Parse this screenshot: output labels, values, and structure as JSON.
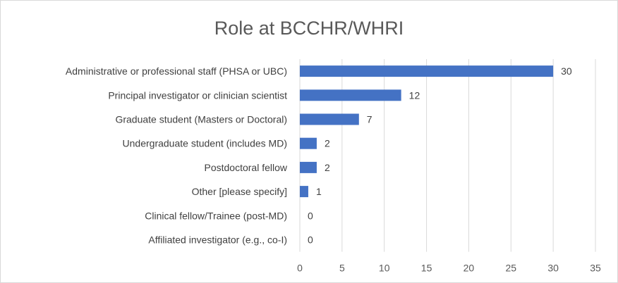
{
  "chart_data": {
    "type": "bar",
    "orientation": "horizontal",
    "title": "Role at BCCHR/WHRI",
    "categories": [
      "Administrative or professional staff (PHSA or UBC)",
      "Principal investigator or clinician scientist",
      "Graduate student (Masters or Doctoral)",
      "Undergraduate student (includes MD)",
      "Postdoctoral fellow",
      "Other [please specify]",
      "Clinical fellow/Trainee (post-MD)",
      "Affiliated investigator (e.g., co-I)"
    ],
    "values": [
      30,
      12,
      7,
      2,
      2,
      1,
      0,
      0
    ],
    "xlim": [
      0,
      35
    ],
    "xticks": [
      0,
      5,
      10,
      15,
      20,
      25,
      30,
      35
    ],
    "grid": true,
    "bar_color": "#4472c4",
    "data_labels": true,
    "legend": "none"
  }
}
